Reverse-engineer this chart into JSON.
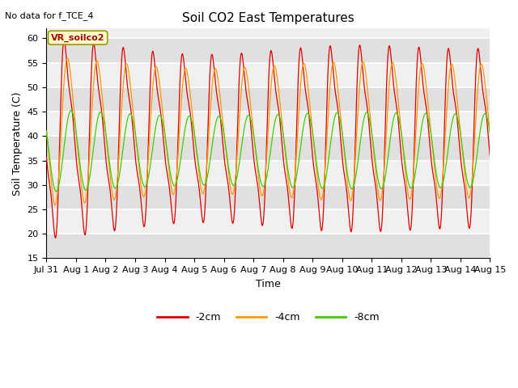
{
  "title": "Soil CO2 East Temperatures",
  "no_data_text": "No data for f_TCE_4",
  "annotation_text": "VR_soilco2",
  "xlabel": "Time",
  "ylabel": "Soil Temperature (C)",
  "ylim": [
    15,
    62
  ],
  "yticks": [
    15,
    20,
    25,
    30,
    35,
    40,
    45,
    50,
    55,
    60
  ],
  "x_labels": [
    "Jul 31",
    "Aug 1",
    "Aug 2",
    "Aug 3",
    "Aug 4",
    "Aug 5",
    "Aug 6",
    "Aug 7",
    "Aug 8",
    "Aug 9",
    "Aug 10",
    "Aug 11",
    "Aug 12",
    "Aug 13",
    "Aug 14",
    "Aug 15"
  ],
  "series_colors": [
    "#dd0000",
    "#ff9900",
    "#44cc00"
  ],
  "series_labels": [
    "-2cm",
    "-4cm",
    "-8cm"
  ],
  "background_color": "#ffffff",
  "plot_bg_color_light": "#f0f0f0",
  "plot_bg_color_dark": "#e0e0e0",
  "grid_color": "#ffffff",
  "n_days": 15,
  "points_per_day": 144,
  "title_fontsize": 11,
  "label_fontsize": 9,
  "tick_fontsize": 8,
  "figsize": [
    6.4,
    4.8
  ],
  "dpi": 100
}
